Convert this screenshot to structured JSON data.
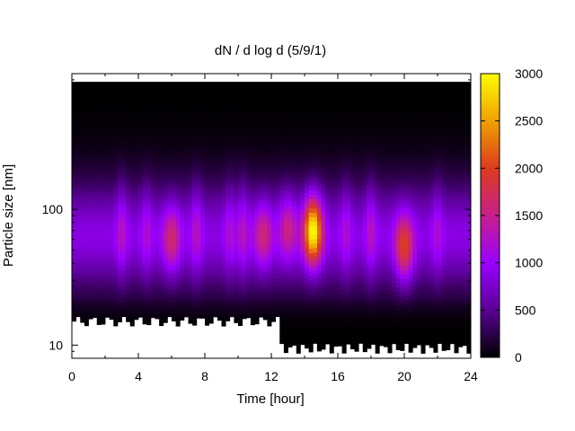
{
  "chart_data": {
    "type": "heatmap",
    "title": "dN / d log d (5/9/1)",
    "xlabel": "Time [hour]",
    "ylabel": "Particle size [nm]",
    "xlim": [
      0,
      24
    ],
    "ylim": [
      8,
      1000
    ],
    "y_scale": "log",
    "x_ticks": [
      "0",
      "4",
      "8",
      "12",
      "16",
      "20",
      "24"
    ],
    "y_ticks": [
      "10",
      "100"
    ],
    "colorbar": {
      "range": [
        0,
        3000
      ],
      "ticks": [
        "0",
        "500",
        "1000",
        "1500",
        "2000",
        "2500",
        "3000"
      ],
      "palette": [
        "#000000",
        "#5a0096",
        "#9a00ff",
        "#c8208c",
        "#dc3c1e",
        "#f0a000",
        "#ffff00"
      ]
    },
    "hotspots": [
      {
        "time_h": 14.5,
        "size_nm": 70,
        "value": 2900
      },
      {
        "time_h": 20.0,
        "size_nm": 52,
        "value": 1900
      },
      {
        "time_h": 6.0,
        "size_nm": 60,
        "value": 1500
      },
      {
        "time_h": 11.5,
        "size_nm": 65,
        "value": 1450
      },
      {
        "time_h": 13.0,
        "size_nm": 75,
        "value": 1400
      }
    ],
    "grid": false,
    "legend": "colorbar-right"
  }
}
